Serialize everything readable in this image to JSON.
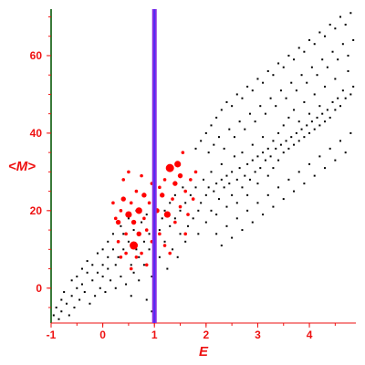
{
  "chart_data": {
    "type": "scatter",
    "title": "",
    "xlabel": "E",
    "ylabel": "<M>",
    "xlim": [
      -1,
      4.9
    ],
    "ylim": [
      -9,
      72
    ],
    "xticks": [
      "-1",
      "0",
      "1",
      "2",
      "3",
      "4"
    ],
    "xtick_values": [
      -1,
      0,
      1,
      2,
      3,
      4
    ],
    "yticks": [
      "0",
      "20",
      "40",
      "60"
    ],
    "ytick_values": [
      0,
      20,
      40,
      60
    ],
    "grid": false,
    "axis_color": "#ee1111",
    "vertical_line": {
      "x": 1.0,
      "color": "#8a2be2"
    },
    "series": [
      {
        "marker": "small-dot",
        "color": "#000000",
        "points": [
          [
            -0.95,
            -7
          ],
          [
            -0.9,
            -5
          ],
          [
            -0.85,
            -8
          ],
          [
            -0.8,
            -3
          ],
          [
            -0.8,
            -6
          ],
          [
            -0.75,
            -1
          ],
          [
            -0.7,
            -4
          ],
          [
            -0.65,
            -7
          ],
          [
            -0.6,
            2
          ],
          [
            -0.6,
            -2
          ],
          [
            -0.55,
            -5
          ],
          [
            -0.5,
            0
          ],
          [
            -0.5,
            3
          ],
          [
            -0.45,
            -3
          ],
          [
            -0.4,
            5
          ],
          [
            -0.4,
            1
          ],
          [
            -0.35,
            -1
          ],
          [
            -0.3,
            4
          ],
          [
            -0.3,
            7
          ],
          [
            -0.25,
            -4
          ],
          [
            -0.2,
            2
          ],
          [
            -0.2,
            6
          ],
          [
            -0.15,
            -2
          ],
          [
            -0.1,
            9
          ],
          [
            -0.1,
            4
          ],
          [
            -0.05,
            0
          ],
          [
            0.0,
            6
          ],
          [
            0.0,
            10
          ],
          [
            0.0,
            3
          ],
          [
            0.05,
            -1
          ],
          [
            0.1,
            8
          ],
          [
            0.1,
            12
          ],
          [
            0.1,
            5
          ],
          [
            0.15,
            2
          ],
          [
            0.2,
            10
          ],
          [
            0.2,
            14
          ],
          [
            0.25,
            6
          ],
          [
            0.25,
            0
          ],
          [
            0.3,
            12
          ],
          [
            0.3,
            8
          ],
          [
            0.35,
            16
          ],
          [
            0.35,
            3
          ],
          [
            0.4,
            10
          ],
          [
            0.4,
            14
          ],
          [
            0.45,
            1
          ],
          [
            0.5,
            12
          ],
          [
            0.5,
            18
          ],
          [
            0.55,
            6
          ],
          [
            0.55,
            -2
          ],
          [
            0.6,
            15
          ],
          [
            0.6,
            4
          ],
          [
            0.65,
            20
          ],
          [
            0.65,
            10
          ],
          [
            0.7,
            2
          ],
          [
            0.7,
            8
          ],
          [
            0.75,
            17
          ],
          [
            0.8,
            6
          ],
          [
            0.8,
            12
          ],
          [
            0.85,
            -3
          ],
          [
            0.85,
            19
          ],
          [
            0.9,
            10
          ],
          [
            0.9,
            14
          ],
          [
            0.95,
            3
          ],
          [
            0.95,
            -6
          ],
          [
            1.1,
            15
          ],
          [
            1.1,
            8
          ],
          [
            1.15,
            18
          ],
          [
            1.2,
            20
          ],
          [
            1.2,
            12
          ],
          [
            1.25,
            5
          ],
          [
            1.3,
            22
          ],
          [
            1.3,
            16
          ],
          [
            1.35,
            10
          ],
          [
            1.4,
            24
          ],
          [
            1.4,
            18
          ],
          [
            1.45,
            8
          ],
          [
            1.5,
            20
          ],
          [
            1.5,
            14
          ],
          [
            1.55,
            26
          ],
          [
            1.6,
            12
          ],
          [
            1.6,
            22
          ],
          [
            1.65,
            16
          ],
          [
            1.7,
            24
          ],
          [
            1.75,
            18
          ],
          [
            1.8,
            26
          ],
          [
            1.85,
            20
          ],
          [
            1.85,
            14
          ],
          [
            1.9,
            22
          ],
          [
            1.95,
            28
          ],
          [
            2.0,
            24
          ],
          [
            2.0,
            17
          ],
          [
            2.05,
            26
          ],
          [
            2.1,
            20
          ],
          [
            2.1,
            30
          ],
          [
            2.15,
            25
          ],
          [
            2.2,
            27
          ],
          [
            2.2,
            19
          ],
          [
            2.25,
            23
          ],
          [
            2.3,
            28
          ],
          [
            2.3,
            32
          ],
          [
            2.35,
            26
          ],
          [
            2.4,
            29
          ],
          [
            2.4,
            21
          ],
          [
            2.45,
            27
          ],
          [
            2.5,
            30
          ],
          [
            2.5,
            24
          ],
          [
            2.55,
            34
          ],
          [
            2.6,
            28
          ],
          [
            2.6,
            22
          ],
          [
            2.65,
            31
          ],
          [
            2.7,
            26
          ],
          [
            2.7,
            35
          ],
          [
            2.75,
            29
          ],
          [
            2.8,
            32
          ],
          [
            2.8,
            24
          ],
          [
            2.85,
            28
          ],
          [
            2.9,
            33
          ],
          [
            2.9,
            37
          ],
          [
            2.95,
            30
          ],
          [
            3.0,
            34
          ],
          [
            3.0,
            27
          ],
          [
            3.05,
            31
          ],
          [
            3.1,
            35
          ],
          [
            3.1,
            39
          ],
          [
            3.15,
            33
          ],
          [
            3.2,
            29
          ],
          [
            3.2,
            36
          ],
          [
            3.25,
            34
          ],
          [
            3.3,
            38
          ],
          [
            3.3,
            31
          ],
          [
            3.35,
            36
          ],
          [
            3.4,
            40
          ],
          [
            3.4,
            33
          ],
          [
            3.45,
            37
          ],
          [
            3.5,
            35
          ],
          [
            3.5,
            42
          ],
          [
            3.55,
            38
          ],
          [
            3.6,
            36
          ],
          [
            3.6,
            44
          ],
          [
            3.65,
            39
          ],
          [
            3.7,
            37
          ],
          [
            3.7,
            46
          ],
          [
            3.75,
            40
          ],
          [
            3.8,
            38
          ],
          [
            3.8,
            43
          ],
          [
            3.85,
            41
          ],
          [
            3.9,
            39
          ],
          [
            3.9,
            48
          ],
          [
            3.95,
            42
          ],
          [
            4.0,
            40
          ],
          [
            4.0,
            45
          ],
          [
            4.05,
            43
          ],
          [
            4.1,
            41
          ],
          [
            4.1,
            50
          ],
          [
            4.15,
            44
          ],
          [
            4.2,
            42
          ],
          [
            4.2,
            47
          ],
          [
            4.25,
            45
          ],
          [
            4.3,
            43
          ],
          [
            4.3,
            52
          ],
          [
            4.35,
            46
          ],
          [
            4.4,
            44
          ],
          [
            4.45,
            48
          ],
          [
            4.5,
            46
          ],
          [
            4.5,
            54
          ],
          [
            4.55,
            49
          ],
          [
            4.6,
            47
          ],
          [
            4.65,
            51
          ],
          [
            4.7,
            49
          ],
          [
            4.75,
            56
          ],
          [
            4.8,
            50
          ],
          [
            4.85,
            52
          ],
          [
            2.0,
            40
          ],
          [
            2.1,
            42
          ],
          [
            2.2,
            44
          ],
          [
            2.3,
            46
          ],
          [
            2.4,
            48
          ],
          [
            2.5,
            47
          ],
          [
            2.6,
            50
          ],
          [
            2.7,
            49
          ],
          [
            2.8,
            52
          ],
          [
            2.9,
            51
          ],
          [
            3.0,
            54
          ],
          [
            3.1,
            53
          ],
          [
            3.2,
            56
          ],
          [
            3.3,
            55
          ],
          [
            3.4,
            58
          ],
          [
            3.5,
            57
          ],
          [
            3.6,
            60
          ],
          [
            3.7,
            59
          ],
          [
            3.8,
            62
          ],
          [
            3.9,
            61
          ],
          [
            4.0,
            64
          ],
          [
            4.1,
            63
          ],
          [
            4.2,
            66
          ],
          [
            4.3,
            65
          ],
          [
            4.4,
            68
          ],
          [
            4.5,
            67
          ],
          [
            4.6,
            70
          ],
          [
            4.7,
            68
          ],
          [
            4.8,
            71
          ],
          [
            1.8,
            36
          ],
          [
            1.9,
            38
          ],
          [
            2.05,
            35
          ],
          [
            2.15,
            37
          ],
          [
            2.25,
            39
          ],
          [
            2.35,
            36
          ],
          [
            2.45,
            41
          ],
          [
            2.55,
            39
          ],
          [
            2.65,
            43
          ],
          [
            2.75,
            41
          ],
          [
            2.85,
            45
          ],
          [
            2.95,
            43
          ],
          [
            3.05,
            47
          ],
          [
            3.15,
            45
          ],
          [
            3.25,
            49
          ],
          [
            3.35,
            47
          ],
          [
            3.45,
            51
          ],
          [
            3.55,
            49
          ],
          [
            3.65,
            53
          ],
          [
            3.75,
            51
          ],
          [
            3.85,
            55
          ],
          [
            3.95,
            53
          ],
          [
            4.05,
            57
          ],
          [
            4.15,
            55
          ],
          [
            4.25,
            59
          ],
          [
            4.35,
            57
          ],
          [
            4.45,
            61
          ],
          [
            4.55,
            59
          ],
          [
            4.65,
            63
          ],
          [
            4.75,
            60
          ],
          [
            4.85,
            64
          ],
          [
            2.2,
            14
          ],
          [
            2.4,
            16
          ],
          [
            2.6,
            18
          ],
          [
            2.8,
            20
          ],
          [
            3.0,
            22
          ],
          [
            3.2,
            24
          ],
          [
            3.4,
            26
          ],
          [
            3.6,
            28
          ],
          [
            3.8,
            30
          ],
          [
            4.0,
            32
          ],
          [
            4.2,
            34
          ],
          [
            4.4,
            36
          ],
          [
            4.6,
            38
          ],
          [
            4.8,
            40
          ],
          [
            2.3,
            11
          ],
          [
            2.5,
            13
          ],
          [
            2.7,
            15
          ],
          [
            2.9,
            17
          ],
          [
            3.1,
            19
          ],
          [
            3.3,
            21
          ],
          [
            3.5,
            23
          ],
          [
            3.7,
            25
          ],
          [
            3.9,
            27
          ],
          [
            4.1,
            29
          ],
          [
            4.3,
            31
          ],
          [
            4.5,
            33
          ],
          [
            4.7,
            35
          ]
        ]
      },
      {
        "marker": "large-dot",
        "color": "#ff0000",
        "points": [
          [
            0.3,
            17,
            3
          ],
          [
            0.35,
            20,
            2
          ],
          [
            0.4,
            23,
            3
          ],
          [
            0.45,
            14,
            2
          ],
          [
            0.5,
            19,
            4
          ],
          [
            0.55,
            22,
            2
          ],
          [
            0.6,
            17,
            3
          ],
          [
            0.6,
            11,
            5
          ],
          [
            0.65,
            25,
            2
          ],
          [
            0.7,
            20,
            4
          ],
          [
            0.7,
            14,
            3
          ],
          [
            0.75,
            9,
            2
          ],
          [
            0.8,
            18,
            2
          ],
          [
            0.8,
            24,
            3
          ],
          [
            0.85,
            15,
            2
          ],
          [
            0.9,
            22,
            2
          ],
          [
            0.95,
            27,
            2
          ],
          [
            0.95,
            12,
            2
          ],
          [
            0.65,
            8,
            2
          ],
          [
            0.55,
            5,
            2
          ],
          [
            0.45,
            9,
            2
          ],
          [
            0.75,
            29,
            2
          ],
          [
            0.85,
            6,
            2
          ],
          [
            1.05,
            20,
            3
          ],
          [
            1.1,
            26,
            2
          ],
          [
            1.1,
            14,
            2
          ],
          [
            1.15,
            24,
            3
          ],
          [
            1.2,
            28,
            2
          ],
          [
            1.25,
            19,
            4
          ],
          [
            1.3,
            31,
            5
          ],
          [
            1.35,
            23,
            2
          ],
          [
            1.4,
            27,
            3
          ],
          [
            1.4,
            17,
            2
          ],
          [
            1.45,
            32,
            4
          ],
          [
            1.5,
            21,
            2
          ],
          [
            1.5,
            29,
            3
          ],
          [
            1.55,
            35,
            2
          ],
          [
            1.6,
            25,
            2
          ],
          [
            1.65,
            19,
            2
          ],
          [
            1.7,
            28,
            2
          ],
          [
            1.75,
            23,
            2
          ],
          [
            1.8,
            30,
            2
          ],
          [
            1.2,
            11,
            2
          ],
          [
            1.3,
            9,
            2
          ],
          [
            1.6,
            14,
            2
          ],
          [
            0.25,
            18,
            2
          ],
          [
            0.3,
            12,
            2
          ],
          [
            0.2,
            22,
            2
          ],
          [
            0.4,
            28,
            2
          ],
          [
            0.5,
            30,
            2
          ],
          [
            0.35,
            8,
            2
          ],
          [
            1.0,
            17,
            2
          ],
          [
            1.0,
            31,
            2
          ]
        ]
      }
    ]
  }
}
